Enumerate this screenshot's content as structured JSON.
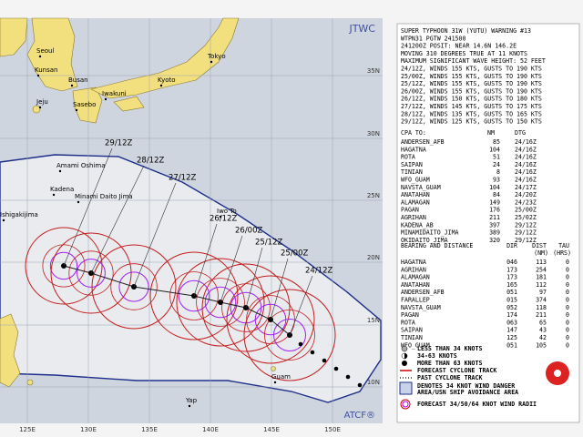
{
  "map": {
    "title": "JTWC",
    "credit": "ATCF®",
    "places": [
      "Seoul",
      "Kunsan",
      "Busan",
      "Jeju",
      "Sasebo",
      "Iwakuni",
      "Kyoto",
      "Tokyo",
      "Amami Oshima",
      "Kadena",
      "Minami Daito Jima",
      "Ishigakijima",
      "Iwo To",
      "Guam",
      "Yap"
    ],
    "lat_labels": [
      "35N",
      "30N",
      "25N",
      "20N",
      "15N",
      "10N"
    ],
    "lon_labels": [
      "125E",
      "130E",
      "135E",
      "140E",
      "145E",
      "150E"
    ],
    "track_labels": [
      "29/12Z",
      "28/12Z",
      "27/12Z",
      "26/12Z",
      "26/00Z",
      "25/12Z",
      "25/00Z",
      "24/12Z"
    ]
  },
  "panel": {
    "header": [
      "SUPER TYPHOON 31W (YUTU) WARNING #13",
      "WTPN31 PGTW 241500",
      "241200Z POSIT: NEAR 14.6N 146.2E",
      "MOVING 310 DEGREES TRUE AT 11 KNOTS",
      "MAXIMUM SIGNIFICANT WAVE HEIGHT: 52 FEET",
      "24/12Z, WINDS 155 KTS, GUSTS TO 190 KTS",
      "25/00Z, WINDS 155 KTS, GUSTS TO 190 KTS",
      "25/12Z, WINDS 155 KTS, GUSTS TO 190 KTS",
      "26/00Z, WINDS 155 KTS, GUSTS TO 190 KTS",
      "26/12Z, WINDS 150 KTS, GUSTS TO 180 KTS",
      "27/12Z, WINDS 145 KTS, GUSTS TO 175 KTS",
      "28/12Z, WINDS 135 KTS, GUSTS TO 165 KTS",
      "29/12Z, WINDS 125 KTS, GUSTS TO 150 KTS"
    ],
    "cpa": {
      "columns": [
        "CPA TO:",
        "NM",
        "DTG"
      ],
      "rows": [
        [
          "ANDERSEN_AFB",
          "85",
          "24/16Z"
        ],
        [
          "HAGATNA",
          "104",
          "24/16Z"
        ],
        [
          "ROTA",
          "51",
          "24/16Z"
        ],
        [
          "SAIPAN",
          "24",
          "24/16Z"
        ],
        [
          "TINIAN",
          "8",
          "24/16Z"
        ],
        [
          "WFO_GUAM",
          "93",
          "24/16Z"
        ],
        [
          "NAVSTA_GUAM",
          "104",
          "24/17Z"
        ],
        [
          "ANATAHAN",
          "84",
          "24/20Z"
        ],
        [
          "ALAMAGAN",
          "149",
          "24/23Z"
        ],
        [
          "PAGAN",
          "176",
          "25/00Z"
        ],
        [
          "AGRIHAN",
          "211",
          "25/02Z"
        ],
        [
          "KADENA_AB",
          "397",
          "29/12Z"
        ],
        [
          "MINAMIDAITO_JIMA",
          "389",
          "29/12Z"
        ],
        [
          "OKIDAITO_JIMA",
          "320",
          "29/12Z"
        ]
      ]
    },
    "bearing": {
      "columns": [
        "BEARING AND DISTANCE",
        "DIR",
        "DIST",
        "TAU"
      ],
      "units": [
        "(NM)",
        "(HRS)"
      ],
      "rows": [
        [
          "HAGATNA",
          "046",
          "113",
          "0"
        ],
        [
          "AGRIHAN",
          "173",
          "254",
          "0"
        ],
        [
          "ALAMAGAN",
          "173",
          "181",
          "0"
        ],
        [
          "ANATAHAN",
          "165",
          "112",
          "0"
        ],
        [
          "ANDERSEN_AFB",
          "051",
          "97",
          "0"
        ],
        [
          "FARALLEP",
          "015",
          "374",
          "0"
        ],
        [
          "NAVSTA_GUAM",
          "052",
          "118",
          "0"
        ],
        [
          "PAGAN",
          "174",
          "211",
          "0"
        ],
        [
          "ROTA",
          "063",
          "65",
          "0"
        ],
        [
          "SAIPAN",
          "147",
          "43",
          "0"
        ],
        [
          "TINIAN",
          "125",
          "42",
          "0"
        ],
        [
          "WFO_GUAM",
          "051",
          "105",
          "0"
        ]
      ]
    },
    "legend": [
      "LESS THAN 34 KNOTS",
      "34-63 KNOTS",
      "MORE THAN 63 KNOTS",
      "FORECAST CYCLONE TRACK",
      "PAST CYCLONE TRACK",
      "DENOTES 34 KNOT WIND DANGER",
      "AREA/USN SHIP AVOIDANCE AREA",
      "FORECAST 34/50/64 KNOT WIND RADII"
    ]
  }
}
